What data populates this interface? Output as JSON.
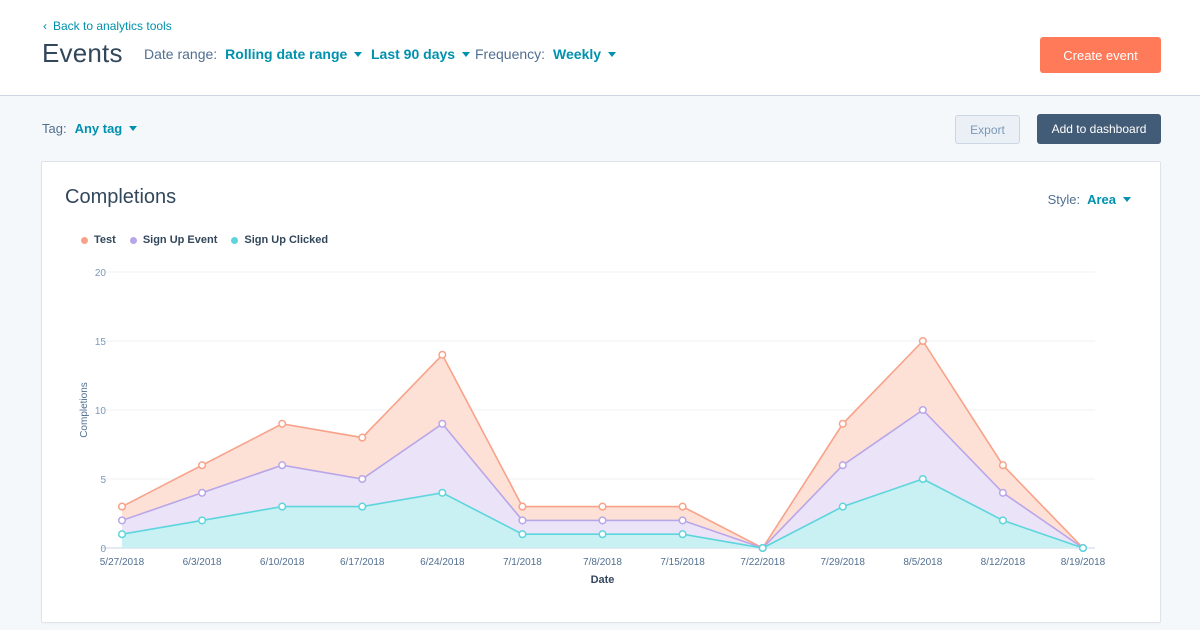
{
  "colors": {
    "accent": "#0091ae",
    "primary": "#ff7a59",
    "dark": "#425b76",
    "test": "#f8a289",
    "signup_event": "#b8a6e8",
    "signup_clicked": "#5cd5dc"
  },
  "header": {
    "back_link": "Back to analytics tools",
    "title": "Events",
    "date_range_label": "Date range:",
    "date_range_value": "Rolling date range",
    "period_value": "Last 90 days",
    "frequency_label": "Frequency:",
    "frequency_value": "Weekly",
    "create_button": "Create event"
  },
  "toolbar": {
    "tag_label": "Tag:",
    "tag_value": "Any tag",
    "export_button": "Export",
    "add_dashboard_button": "Add to dashboard"
  },
  "card": {
    "title": "Completions",
    "style_label": "Style:",
    "style_value": "Area"
  },
  "chart_data": {
    "type": "area",
    "xlabel": "Date",
    "ylabel": "Completions",
    "ylim": [
      0,
      20
    ],
    "yticks": [
      0,
      5,
      10,
      15,
      20
    ],
    "grid": true,
    "legend_position": "top-left",
    "categories": [
      "5/27/2018",
      "6/3/2018",
      "6/10/2018",
      "6/17/2018",
      "6/24/2018",
      "7/1/2018",
      "7/8/2018",
      "7/15/2018",
      "7/22/2018",
      "7/29/2018",
      "8/5/2018",
      "8/12/2018",
      "8/19/2018"
    ],
    "series": [
      {
        "name": "Test",
        "color": "#f8a289",
        "values": [
          3,
          6,
          9,
          8,
          14,
          3,
          3,
          3,
          0,
          9,
          15,
          6,
          0
        ]
      },
      {
        "name": "Sign Up Event",
        "color": "#b8a6e8",
        "values": [
          2,
          4,
          6,
          5,
          9,
          2,
          2,
          2,
          0,
          6,
          10,
          4,
          0
        ]
      },
      {
        "name": "Sign Up Clicked",
        "color": "#5cd5dc",
        "values": [
          1,
          2,
          3,
          3,
          4,
          1,
          1,
          1,
          0,
          3,
          5,
          2,
          0
        ]
      }
    ]
  }
}
